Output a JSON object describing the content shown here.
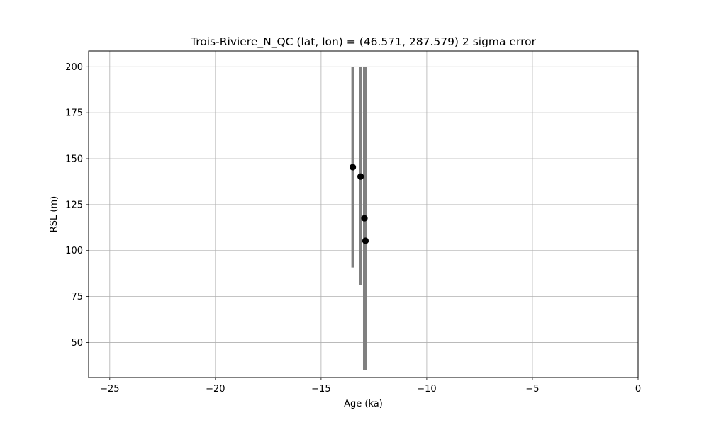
{
  "chart_data": {
    "type": "scatter",
    "title": "Trois-Riviere_N_QC (lat, lon) = (46.571, 287.579)  2 sigma error",
    "xlabel": "Age (ka)",
    "ylabel": "RSL (m)",
    "xlim": [
      -26,
      0
    ],
    "ylim": [
      30.9,
      208.6
    ],
    "xticks": [
      -25,
      -20,
      -15,
      -10,
      -5,
      0
    ],
    "xtick_labels": [
      "−25",
      "−20",
      "−15",
      "−10",
      "−5",
      "0"
    ],
    "yticks": [
      50,
      75,
      100,
      125,
      150,
      175,
      200
    ],
    "ytick_labels": [
      "50",
      "75",
      "100",
      "125",
      "150",
      "175",
      "200"
    ],
    "grid": true,
    "marker_color": "#000000",
    "errorbar_color": "#808080",
    "points": [
      {
        "x": -13.5,
        "y": 145.4,
        "ymin": 90.8,
        "ymax": 200.0
      },
      {
        "x": -13.13,
        "y": 140.3,
        "ymin": 81.2,
        "ymax": 200.0
      },
      {
        "x": -12.95,
        "y": 117.6,
        "ymin": 34.8,
        "ymax": 200.0
      },
      {
        "x": -12.9,
        "y": 105.3,
        "ymin": 34.8,
        "ymax": 200.0
      }
    ]
  }
}
